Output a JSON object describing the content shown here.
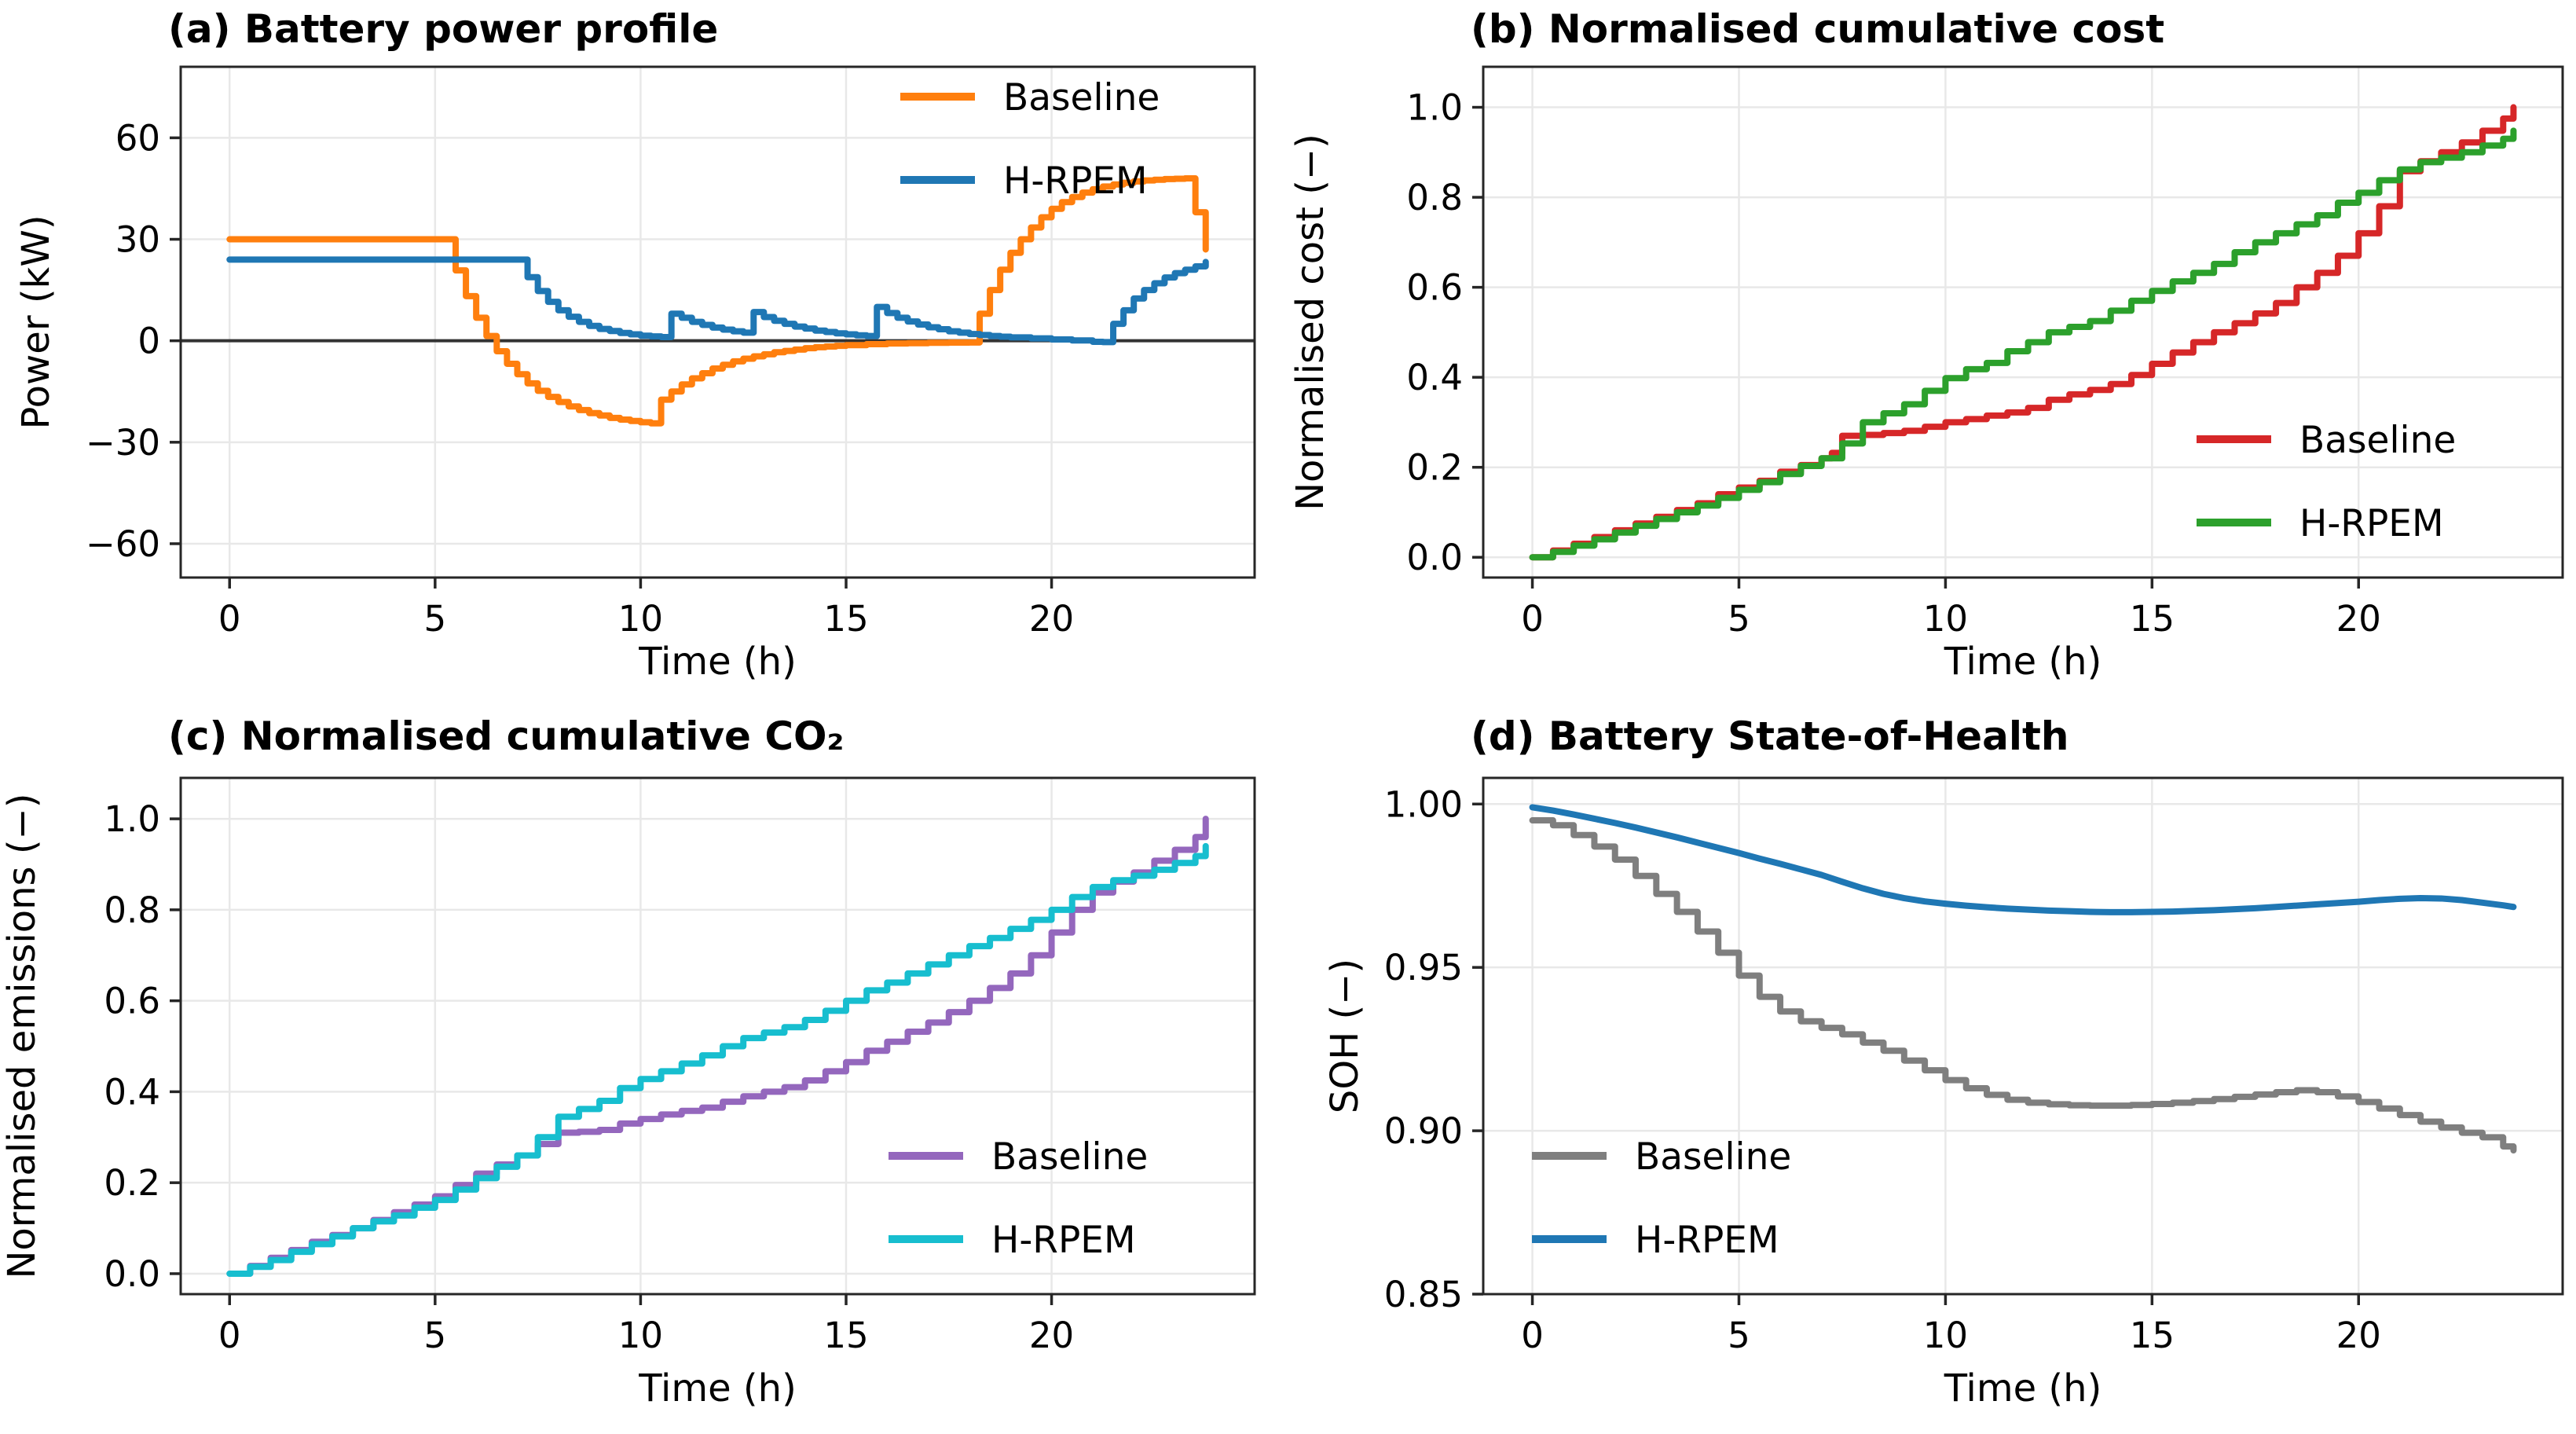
{
  "figure": {
    "background": "#ffffff",
    "grid_color": "#e8e8e8",
    "spine_color": "#262626",
    "text_color": "#000000"
  },
  "chart_data": [
    {
      "id": "a",
      "type": "line",
      "title": "(a) Battery power profile",
      "xlabel": "Time (h)",
      "ylabel": "Power (kW)",
      "xlim": [
        -1.19,
        24.94
      ],
      "ylim": [
        -70,
        81
      ],
      "xticks": [
        0,
        5,
        10,
        15,
        20
      ],
      "xticklabels": [
        "0",
        "5",
        "10",
        "15",
        "20"
      ],
      "yticks": [
        -60,
        -30,
        0,
        30,
        60
      ],
      "yticklabels": [
        "−60",
        "−30",
        "0",
        "30",
        "60"
      ],
      "grid": true,
      "zero_line": true,
      "legend": {
        "loc": "upper right"
      },
      "series": [
        {
          "name": "Baseline",
          "color": "#ff7f0e",
          "steps": true,
          "x": [
            0,
            5.25,
            5.5,
            5.75,
            6,
            6.25,
            6.5,
            6.75,
            7,
            7.25,
            7.5,
            7.75,
            8,
            8.25,
            8.5,
            8.75,
            9,
            9.25,
            9.5,
            9.75,
            10,
            10.25,
            10.5,
            10.75,
            11,
            11.25,
            11.5,
            11.75,
            12,
            12.25,
            12.5,
            12.75,
            13,
            13.25,
            13.5,
            13.75,
            14,
            14.25,
            14.5,
            14.75,
            15,
            15.5,
            16,
            16.5,
            17,
            17.5,
            18,
            18.25,
            18.5,
            18.75,
            19,
            19.25,
            19.5,
            19.75,
            20,
            20.25,
            20.5,
            20.75,
            21,
            21.25,
            21.5,
            21.75,
            22,
            22.25,
            22.5,
            22.75,
            23,
            23.25,
            23.5,
            23.75
          ],
          "y": [
            30,
            30,
            20.8,
            13.2,
            6.8,
            1.4,
            -3.1,
            -6.8,
            -9.9,
            -12.6,
            -14.8,
            -16.6,
            -18.1,
            -19.4,
            -20.5,
            -21.4,
            -22.1,
            -22.8,
            -23.3,
            -23.7,
            -24.1,
            -24.4,
            -17.4,
            -15,
            -12.9,
            -11.1,
            -9.6,
            -8.2,
            -7.1,
            -6.1,
            -5.3,
            -4.6,
            -4,
            -3.4,
            -3,
            -2.6,
            -2.2,
            -1.9,
            -1.7,
            -1.5,
            -1.3,
            -1,
            -0.8,
            -0.7,
            -0.6,
            -0.55,
            -0.5,
            8,
            15,
            21,
            26,
            30,
            33.5,
            36.5,
            39,
            41,
            42.5,
            43.8,
            44.8,
            45.6,
            46.2,
            46.7,
            47.1,
            47.4,
            47.6,
            47.8,
            47.9,
            48,
            38,
            27
          ]
        },
        {
          "name": "H-RPEM",
          "color": "#1f77b4",
          "steps": true,
          "x": [
            0,
            7,
            7.25,
            7.5,
            7.75,
            8,
            8.25,
            8.5,
            8.75,
            9,
            9.25,
            9.5,
            9.75,
            10,
            10.25,
            10.5,
            10.75,
            11,
            11.25,
            11.5,
            11.75,
            12,
            12.25,
            12.5,
            12.75,
            13,
            13.25,
            13.5,
            13.75,
            14,
            14.25,
            14.5,
            14.75,
            15,
            15.25,
            15.5,
            15.75,
            16,
            16.25,
            16.5,
            16.75,
            17,
            17.25,
            17.5,
            17.75,
            18,
            18.25,
            18.5,
            18.75,
            19,
            19.5,
            20,
            20.5,
            21,
            21.25,
            21.5,
            21.75,
            22,
            22.25,
            22.5,
            22.75,
            23,
            23.25,
            23.5,
            23.75
          ],
          "y": [
            24,
            24,
            18.8,
            14.7,
            11.5,
            9,
            7.1,
            5.6,
            4.4,
            3.5,
            2.9,
            2.3,
            1.9,
            1.5,
            1.3,
            1.1,
            8,
            6.8,
            5.6,
            4.7,
            3.9,
            3.3,
            2.8,
            2.4,
            8.5,
            7,
            5.9,
            5,
            4.2,
            3.6,
            3,
            2.6,
            2.2,
            1.9,
            1.6,
            1.4,
            10,
            8.2,
            6.8,
            5.7,
            4.8,
            4,
            3.4,
            2.8,
            2.4,
            2,
            1.7,
            1.4,
            1.2,
            1,
            0.7,
            0.4,
            0.1,
            -0.3,
            -0.4,
            5,
            9,
            12.5,
            15,
            17,
            18.7,
            20,
            21,
            22,
            23.3
          ]
        }
      ]
    },
    {
      "id": "b",
      "type": "line",
      "title": "(b) Normalised cumulative cost",
      "xlabel": "Time (h)",
      "ylabel": "Normalised cost (−)",
      "xlim": [
        -1.19,
        24.94
      ],
      "ylim": [
        -0.045,
        1.09
      ],
      "xticks": [
        0,
        5,
        10,
        15,
        20
      ],
      "xticklabels": [
        "0",
        "5",
        "10",
        "15",
        "20"
      ],
      "yticks": [
        0.0,
        0.2,
        0.4,
        0.6,
        0.8,
        1.0
      ],
      "yticklabels": [
        "0.0",
        "0.2",
        "0.4",
        "0.6",
        "0.8",
        "1.0"
      ],
      "grid": true,
      "zero_line": false,
      "legend": {
        "loc": "lower right"
      },
      "series": [
        {
          "name": "Baseline",
          "color": "#d62728",
          "steps": true,
          "x": [
            0,
            0.5,
            1,
            1.5,
            2,
            2.5,
            3,
            3.5,
            4,
            4.5,
            5,
            5.5,
            6,
            6.5,
            7,
            7.25,
            7.5,
            8,
            8.5,
            9,
            9.5,
            10,
            10.5,
            11,
            11.5,
            12,
            12.5,
            13,
            13.5,
            14,
            14.5,
            15,
            15.5,
            16,
            16.5,
            17,
            17.5,
            18,
            18.5,
            19,
            19.5,
            20,
            20.5,
            21,
            21.5,
            22,
            22.5,
            23,
            23.5,
            23.75
          ],
          "y": [
            0,
            0.015,
            0.03,
            0.045,
            0.06,
            0.075,
            0.09,
            0.105,
            0.12,
            0.14,
            0.155,
            0.17,
            0.19,
            0.205,
            0.22,
            0.232,
            0.27,
            0.272,
            0.276,
            0.281,
            0.29,
            0.3,
            0.307,
            0.315,
            0.322,
            0.332,
            0.35,
            0.362,
            0.372,
            0.385,
            0.405,
            0.43,
            0.455,
            0.478,
            0.5,
            0.52,
            0.542,
            0.565,
            0.6,
            0.632,
            0.67,
            0.72,
            0.78,
            0.858,
            0.88,
            0.9,
            0.922,
            0.948,
            0.975,
            1.0
          ]
        },
        {
          "name": "H-RPEM",
          "color": "#2ca02c",
          "steps": true,
          "x": [
            0,
            0.5,
            1,
            1.5,
            2,
            2.5,
            3,
            3.5,
            4,
            4.5,
            5,
            5.5,
            6,
            6.5,
            7,
            7.5,
            8,
            8.5,
            9,
            9.5,
            10,
            10.5,
            11,
            11.5,
            12,
            12.5,
            13,
            13.5,
            14,
            14.5,
            15,
            15.5,
            16,
            16.5,
            17,
            17.5,
            18,
            18.5,
            19,
            19.5,
            20,
            20.5,
            21,
            21.5,
            22,
            22.5,
            23,
            23.5,
            23.75
          ],
          "y": [
            0,
            0.012,
            0.026,
            0.04,
            0.055,
            0.07,
            0.085,
            0.1,
            0.115,
            0.132,
            0.15,
            0.167,
            0.185,
            0.203,
            0.22,
            0.253,
            0.3,
            0.32,
            0.34,
            0.37,
            0.398,
            0.418,
            0.432,
            0.458,
            0.478,
            0.5,
            0.512,
            0.525,
            0.548,
            0.57,
            0.592,
            0.613,
            0.632,
            0.652,
            0.678,
            0.7,
            0.72,
            0.74,
            0.76,
            0.788,
            0.81,
            0.838,
            0.862,
            0.878,
            0.888,
            0.9,
            0.915,
            0.93,
            0.948
          ]
        }
      ]
    },
    {
      "id": "c",
      "type": "line",
      "title": "(c) Normalised cumulative CO₂",
      "xlabel": "Time (h)",
      "ylabel": "Normalised emissions (−)",
      "xlim": [
        -1.19,
        24.94
      ],
      "ylim": [
        -0.045,
        1.09
      ],
      "xticks": [
        0,
        5,
        10,
        15,
        20
      ],
      "xticklabels": [
        "0",
        "5",
        "10",
        "15",
        "20"
      ],
      "yticks": [
        0.0,
        0.2,
        0.4,
        0.6,
        0.8,
        1.0
      ],
      "yticklabels": [
        "0.0",
        "0.2",
        "0.4",
        "0.6",
        "0.8",
        "1.0"
      ],
      "grid": true,
      "zero_line": false,
      "legend": {
        "loc": "lower right"
      },
      "series": [
        {
          "name": "Baseline",
          "color": "#9467bd",
          "steps": true,
          "x": [
            0,
            0.5,
            1,
            1.5,
            2,
            2.5,
            3,
            3.5,
            4,
            4.5,
            5,
            5.5,
            6,
            6.5,
            7,
            7.5,
            8,
            8.5,
            9,
            9.5,
            10,
            10.5,
            11,
            11.5,
            12,
            12.5,
            13,
            13.5,
            14,
            14.5,
            15,
            15.5,
            16,
            16.5,
            17,
            17.5,
            18,
            18.5,
            19,
            19.5,
            20,
            20.5,
            21,
            21.5,
            22,
            22.5,
            23,
            23.5,
            23.75
          ],
          "y": [
            0,
            0.017,
            0.035,
            0.052,
            0.07,
            0.085,
            0.1,
            0.118,
            0.135,
            0.152,
            0.17,
            0.195,
            0.22,
            0.24,
            0.26,
            0.285,
            0.31,
            0.312,
            0.316,
            0.33,
            0.34,
            0.35,
            0.358,
            0.365,
            0.378,
            0.39,
            0.4,
            0.41,
            0.425,
            0.445,
            0.465,
            0.49,
            0.51,
            0.532,
            0.552,
            0.575,
            0.6,
            0.628,
            0.66,
            0.7,
            0.75,
            0.8,
            0.838,
            0.862,
            0.882,
            0.908,
            0.932,
            0.96,
            1.0
          ]
        },
        {
          "name": "H-RPEM",
          "color": "#17becf",
          "steps": true,
          "x": [
            0,
            0.5,
            1,
            1.5,
            2,
            2.5,
            3,
            3.5,
            4,
            4.5,
            5,
            5.5,
            6,
            6.5,
            7,
            7.5,
            8,
            8.5,
            9,
            9.5,
            10,
            10.5,
            11,
            11.5,
            12,
            12.5,
            13,
            13.5,
            14,
            14.5,
            15,
            15.5,
            16,
            16.5,
            17,
            17.5,
            18,
            18.5,
            19,
            19.5,
            20,
            20.5,
            21,
            21.5,
            22,
            22.5,
            23,
            23.5,
            23.75
          ],
          "y": [
            0,
            0.015,
            0.03,
            0.048,
            0.065,
            0.082,
            0.1,
            0.115,
            0.128,
            0.145,
            0.162,
            0.185,
            0.21,
            0.235,
            0.26,
            0.3,
            0.345,
            0.362,
            0.38,
            0.408,
            0.428,
            0.445,
            0.462,
            0.48,
            0.5,
            0.518,
            0.53,
            0.542,
            0.558,
            0.578,
            0.6,
            0.623,
            0.64,
            0.66,
            0.68,
            0.7,
            0.72,
            0.738,
            0.758,
            0.778,
            0.8,
            0.828,
            0.85,
            0.865,
            0.875,
            0.888,
            0.903,
            0.918,
            0.94
          ]
        }
      ]
    },
    {
      "id": "d",
      "type": "line",
      "title": "(d) Battery State-of-Health",
      "xlabel": "Time (h)",
      "ylabel": "SOH (−)",
      "xlim": [
        -1.19,
        24.94
      ],
      "ylim": [
        0.85,
        1.008
      ],
      "xticks": [
        0,
        5,
        10,
        15,
        20
      ],
      "xticklabels": [
        "0",
        "5",
        "10",
        "15",
        "20"
      ],
      "yticks": [
        0.85,
        0.9,
        0.95,
        1.0
      ],
      "yticklabels": [
        "0.85",
        "0.90",
        "0.95",
        "1.00"
      ],
      "grid": true,
      "zero_line": false,
      "legend": {
        "loc": "lower left"
      },
      "series": [
        {
          "name": "Baseline",
          "color": "#7f7f7f",
          "steps": true,
          "x": [
            0,
            0.5,
            1,
            1.5,
            2,
            2.5,
            3,
            3.5,
            4,
            4.5,
            5,
            5.5,
            6,
            6.5,
            7,
            7.5,
            8,
            8.5,
            9,
            9.5,
            10,
            10.5,
            11,
            11.5,
            12,
            12.5,
            13,
            13.5,
            14,
            14.5,
            15,
            15.5,
            16,
            16.5,
            17,
            17.5,
            18,
            18.5,
            19,
            19.5,
            20,
            20.5,
            21,
            21.5,
            22,
            22.5,
            23,
            23.5,
            23.75
          ],
          "y": [
            0.995,
            0.9935,
            0.9905,
            0.987,
            0.983,
            0.978,
            0.9725,
            0.967,
            0.961,
            0.9545,
            0.9475,
            0.941,
            0.9365,
            0.9335,
            0.9315,
            0.9295,
            0.927,
            0.9245,
            0.9215,
            0.9185,
            0.9155,
            0.913,
            0.911,
            0.9095,
            0.9086,
            0.9081,
            0.9078,
            0.9077,
            0.9077,
            0.9079,
            0.9082,
            0.9086,
            0.9091,
            0.9097,
            0.9104,
            0.9111,
            0.9118,
            0.9124,
            0.9118,
            0.9105,
            0.9088,
            0.9068,
            0.9048,
            0.9028,
            0.901,
            0.8994,
            0.898,
            0.8952,
            0.894
          ]
        },
        {
          "name": "H-RPEM",
          "color": "#1f77b4",
          "steps": false,
          "x": [
            0,
            0.5,
            1,
            1.5,
            2,
            2.5,
            3,
            3.5,
            4,
            4.5,
            5,
            5.5,
            6,
            6.5,
            7,
            7.5,
            8,
            8.5,
            9,
            9.5,
            10,
            10.5,
            11,
            11.5,
            12,
            12.5,
            13,
            13.5,
            14,
            14.5,
            15,
            15.5,
            16,
            16.5,
            17,
            17.5,
            18,
            18.5,
            19,
            19.5,
            20,
            20.5,
            21,
            21.5,
            22,
            22.5,
            23,
            23.5,
            23.75
          ],
          "y": [
            0.999,
            0.998,
            0.9968,
            0.9955,
            0.9942,
            0.9928,
            0.9913,
            0.9898,
            0.9882,
            0.9866,
            0.985,
            0.9833,
            0.9817,
            0.98,
            0.9783,
            0.9762,
            0.9742,
            0.9725,
            0.9712,
            0.9702,
            0.9695,
            0.9689,
            0.9684,
            0.968,
            0.9677,
            0.9674,
            0.9672,
            0.967,
            0.9669,
            0.9669,
            0.967,
            0.9671,
            0.9673,
            0.9675,
            0.9678,
            0.9681,
            0.9685,
            0.9689,
            0.9693,
            0.9697,
            0.9701,
            0.9706,
            0.971,
            0.9712,
            0.9711,
            0.9706,
            0.9698,
            0.969,
            0.9685
          ]
        }
      ]
    }
  ]
}
